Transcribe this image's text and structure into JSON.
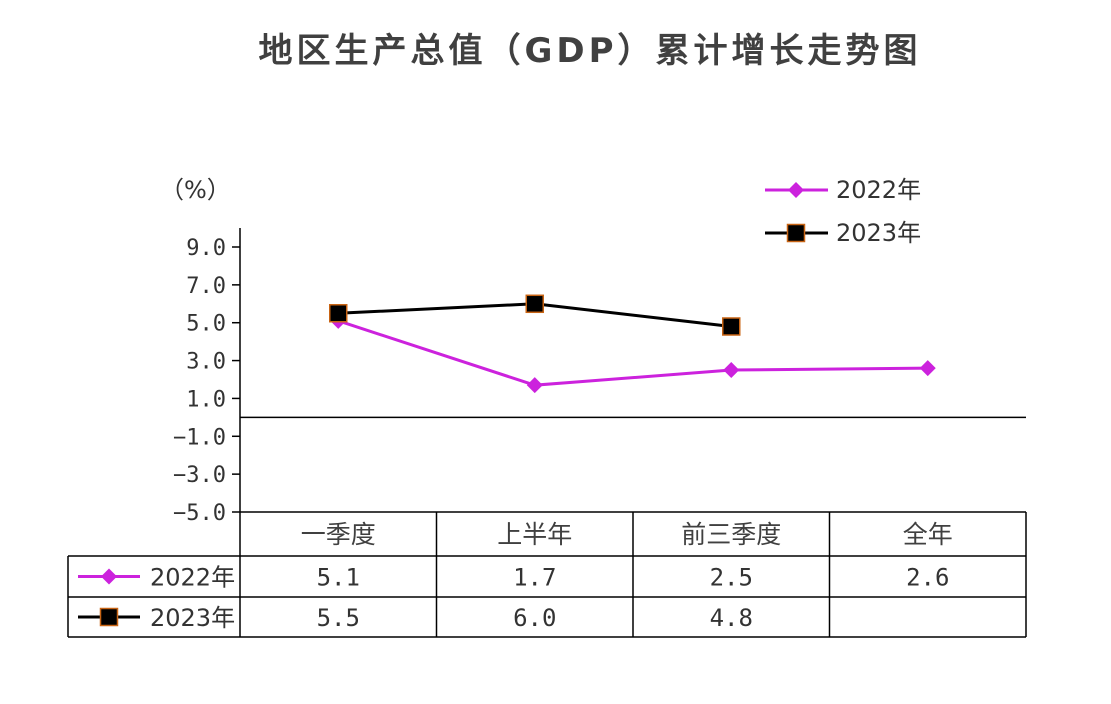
{
  "title": "地区生产总值（GDP）累计增长走势图",
  "unit_label": "（%）",
  "colors": {
    "series_2022": "#cc22dd",
    "series_2023": "#000000",
    "marker_2023_border": "#c86414",
    "text": "#404040"
  },
  "chart_data": {
    "type": "line",
    "categories": [
      "一季度",
      "上半年",
      "前三季度",
      "全年"
    ],
    "series": [
      {
        "name": "2022年",
        "values": [
          5.1,
          1.7,
          2.5,
          2.6
        ],
        "labels": [
          "5.1",
          "1.7",
          "2.5",
          "2.6"
        ],
        "marker": "diamond"
      },
      {
        "name": "2023年",
        "values": [
          5.5,
          6.0,
          4.8,
          null
        ],
        "labels": [
          "5.5",
          "6.0",
          "4.8",
          ""
        ],
        "marker": "square"
      }
    ],
    "yticks": [
      9.0,
      7.0,
      5.0,
      3.0,
      1.0,
      -1.0,
      -3.0,
      -5.0
    ],
    "ytick_labels": [
      "9.0",
      "7.0",
      "5.0",
      "3.0",
      "1.0",
      "−1.0",
      "−3.0",
      "−5.0"
    ],
    "ylim": [
      -5.0,
      9.0
    ],
    "legend_position": "top-right",
    "data_table": true,
    "grid": false
  }
}
